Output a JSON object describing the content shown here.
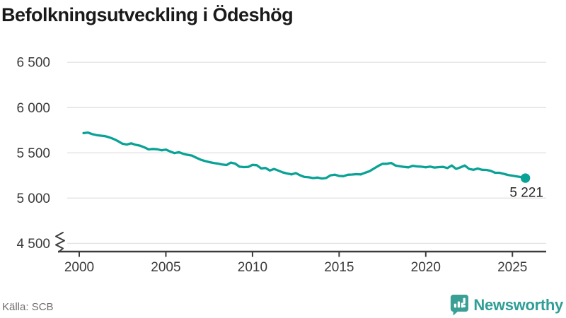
{
  "title": "Befolkningsutveckling i Ödeshög",
  "footer": {
    "source": "Källa: SCB",
    "brand": "Newsworthy"
  },
  "colors": {
    "line": "#0aa296",
    "brand_teal": "#3aa096",
    "axis": "#3d3d3d",
    "gridline": "#e3e3e3",
    "tick_label": "#3b3b3b",
    "annotation": "#252525"
  },
  "chart_data": {
    "type": "line",
    "title": "Befolkningsutveckling i Ödeshög",
    "xlabel": "",
    "ylabel": "",
    "x_start": 2000.25,
    "x_step": 0.25,
    "x_unit": "year (quarterly)",
    "values": [
      5718,
      5724,
      5707,
      5696,
      5690,
      5684,
      5670,
      5652,
      5628,
      5601,
      5592,
      5605,
      5589,
      5580,
      5562,
      5538,
      5543,
      5540,
      5528,
      5536,
      5515,
      5497,
      5508,
      5490,
      5478,
      5470,
      5447,
      5425,
      5410,
      5398,
      5388,
      5381,
      5372,
      5366,
      5392,
      5381,
      5347,
      5342,
      5345,
      5367,
      5363,
      5328,
      5333,
      5305,
      5322,
      5303,
      5284,
      5272,
      5262,
      5277,
      5252,
      5234,
      5230,
      5221,
      5227,
      5217,
      5222,
      5252,
      5259,
      5245,
      5242,
      5258,
      5260,
      5264,
      5262,
      5281,
      5297,
      5326,
      5355,
      5379,
      5379,
      5388,
      5360,
      5352,
      5345,
      5340,
      5357,
      5350,
      5347,
      5340,
      5348,
      5338,
      5342,
      5345,
      5332,
      5360,
      5323,
      5340,
      5360,
      5323,
      5313,
      5327,
      5313,
      5311,
      5302,
      5280,
      5280,
      5268,
      5256,
      5248,
      5240,
      5232,
      5221
    ],
    "xticks": [
      2000,
      2005,
      2010,
      2015,
      2020,
      2025
    ],
    "xtick_labels": [
      "2000",
      "2005",
      "2010",
      "2015",
      "2020",
      "2025"
    ],
    "yticks": [
      6500,
      6000,
      5500,
      5000,
      4500
    ],
    "ytick_labels": [
      "6 500",
      "6 000",
      "5 500",
      "5 000",
      "4 500"
    ],
    "xlim": [
      1999.3,
      2026.9
    ],
    "ylim": [
      4500,
      6500
    ],
    "axis_break_at_bottom": true,
    "grid": "horizontal",
    "legend": "none",
    "last_value": 5221,
    "last_value_label": "5 221",
    "line_color": "#0aa296"
  }
}
